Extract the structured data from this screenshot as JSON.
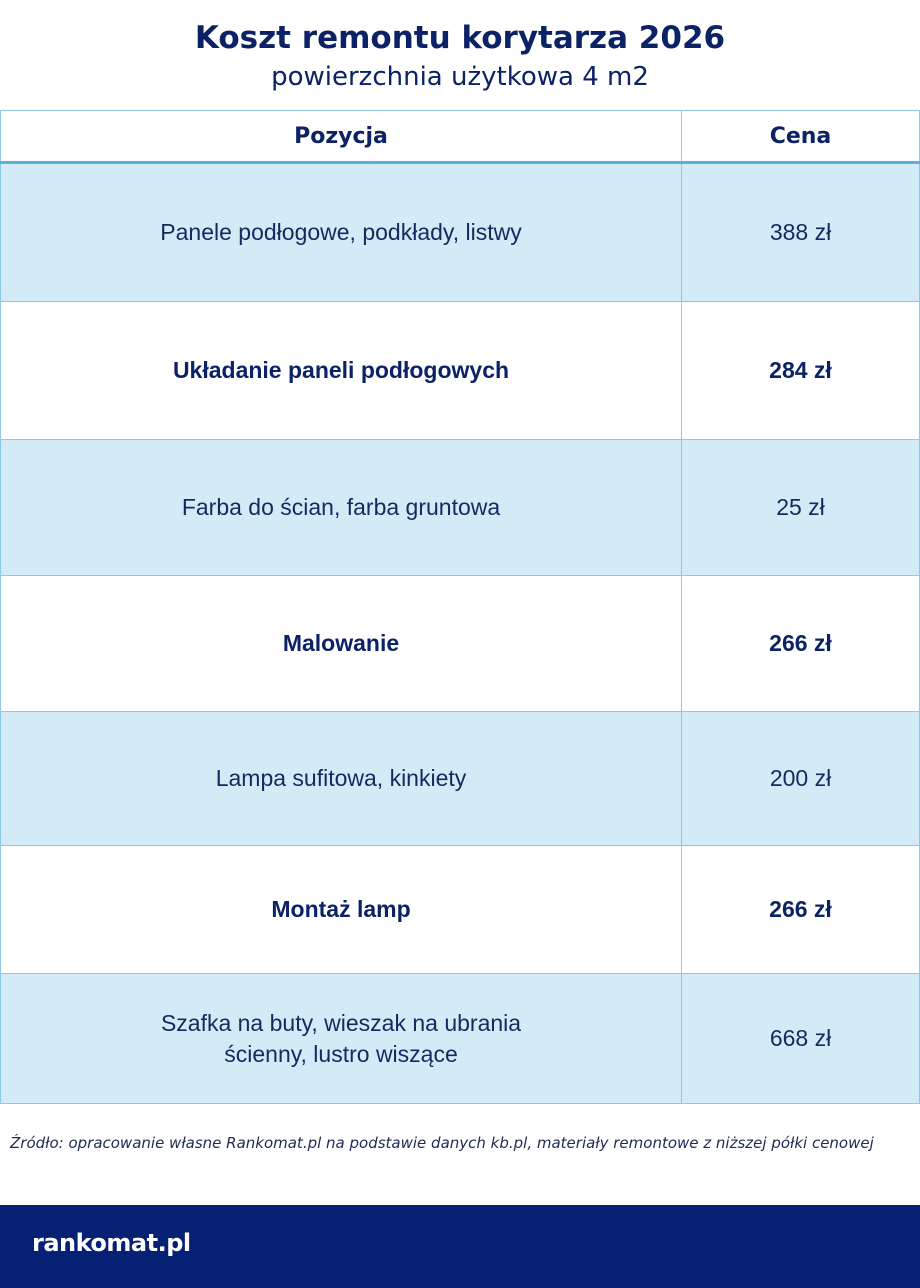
{
  "header": {
    "title": "Koszt remontu korytarza 2026",
    "subtitle": "powierzchnia użytkowa 4 m2"
  },
  "table": {
    "columns": [
      "Pozycja",
      "Cena"
    ],
    "rows": [
      {
        "item": "Panele podłogowe, podkłady, listwy",
        "price": "388 zł",
        "bold": false
      },
      {
        "item": "Układanie paneli podłogowych",
        "price": "284 zł",
        "bold": true
      },
      {
        "item": "Farba do ścian, farba gruntowa",
        "price": "25 zł",
        "bold": false
      },
      {
        "item": "Malowanie",
        "price": "266 zł",
        "bold": true
      },
      {
        "item": "Lampa sufitowa, kinkiety",
        "price": "200 zł",
        "bold": false
      },
      {
        "item": "Montaż lamp",
        "price": "266 zł",
        "bold": true
      },
      {
        "item": "Szafka na buty, wieszak na ubrania ścienny, lustro wiszące",
        "price": "668 zł",
        "bold": false
      }
    ]
  },
  "source": "Źródło: opracowanie własne Rankomat.pl na podstawie danych kb.pl,  materiały remontowe z niższej półki cenowej",
  "footer": {
    "logo": "rankomat.pl"
  },
  "colors": {
    "navy": "#062174",
    "row_blue": "#d3ebf7",
    "border": "#8ec8e6"
  }
}
